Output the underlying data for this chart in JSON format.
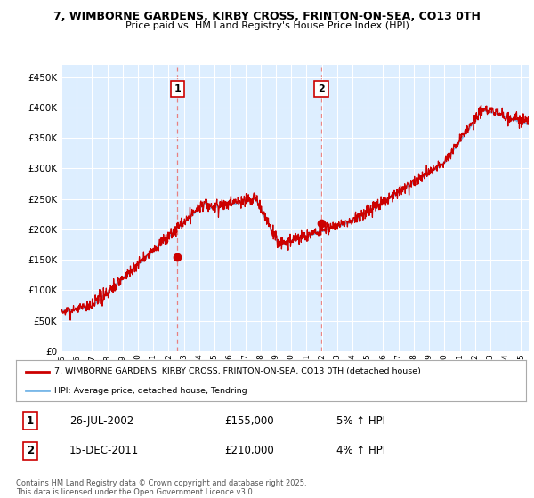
{
  "title": "7, WIMBORNE GARDENS, KIRBY CROSS, FRINTON-ON-SEA, CO13 0TH",
  "subtitle": "Price paid vs. HM Land Registry's House Price Index (HPI)",
  "legend_line1": "7, WIMBORNE GARDENS, KIRBY CROSS, FRINTON-ON-SEA, CO13 0TH (detached house)",
  "legend_line2": "HPI: Average price, detached house, Tendring",
  "annotation_footer": "Contains HM Land Registry data © Crown copyright and database right 2025.\nThis data is licensed under the Open Government Licence v3.0.",
  "sale1_date": "26-JUL-2002",
  "sale1_price": "£155,000",
  "sale1_hpi": "5% ↑ HPI",
  "sale2_date": "15-DEC-2011",
  "sale2_price": "£210,000",
  "sale2_hpi": "4% ↑ HPI",
  "hpi_color": "#7ab8e8",
  "price_color": "#cc0000",
  "dashed_color": "#e88080",
  "bg_color": "#ddeeff",
  "ylim": [
    0,
    470000
  ],
  "yticks": [
    0,
    50000,
    100000,
    150000,
    200000,
    250000,
    300000,
    350000,
    400000,
    450000
  ],
  "sale1_x": 2002.57,
  "sale2_x": 2011.96,
  "sale1_y": 155000,
  "sale2_y": 210000,
  "xmin": 1995,
  "xmax": 2025.5,
  "figsize": [
    6.0,
    5.6
  ],
  "dpi": 100
}
